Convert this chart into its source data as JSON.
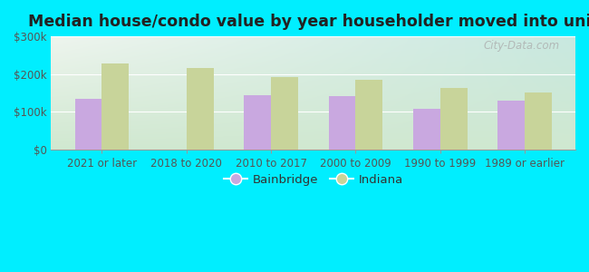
{
  "title": "Median house/condo value by year householder moved into unit",
  "categories": [
    "2021 or later",
    "2018 to 2020",
    "2010 to 2017",
    "2000 to 2009",
    "1990 to 1999",
    "1989 or earlier"
  ],
  "bainbridge_values": [
    135000,
    0,
    143000,
    140000,
    107000,
    128000
  ],
  "indiana_values": [
    228000,
    215000,
    192000,
    185000,
    163000,
    150000
  ],
  "bainbridge_color": "#c9a8e0",
  "indiana_color": "#c8d49a",
  "background_outer": "#00eeff",
  "background_inner_topleft": "#eef5ee",
  "background_inner_topright": "#d8eee8",
  "background_inner_bottom": "#d0e8d0",
  "ylim": [
    0,
    300000
  ],
  "yticks": [
    0,
    100000,
    200000,
    300000
  ],
  "ytick_labels": [
    "$0",
    "$100k",
    "$200k",
    "$300k"
  ],
  "watermark": "City-Data.com",
  "legend_labels": [
    "Bainbridge",
    "Indiana"
  ],
  "bar_width": 0.32,
  "title_fontsize": 12.5,
  "tick_fontsize": 8.5,
  "legend_fontsize": 9.5
}
